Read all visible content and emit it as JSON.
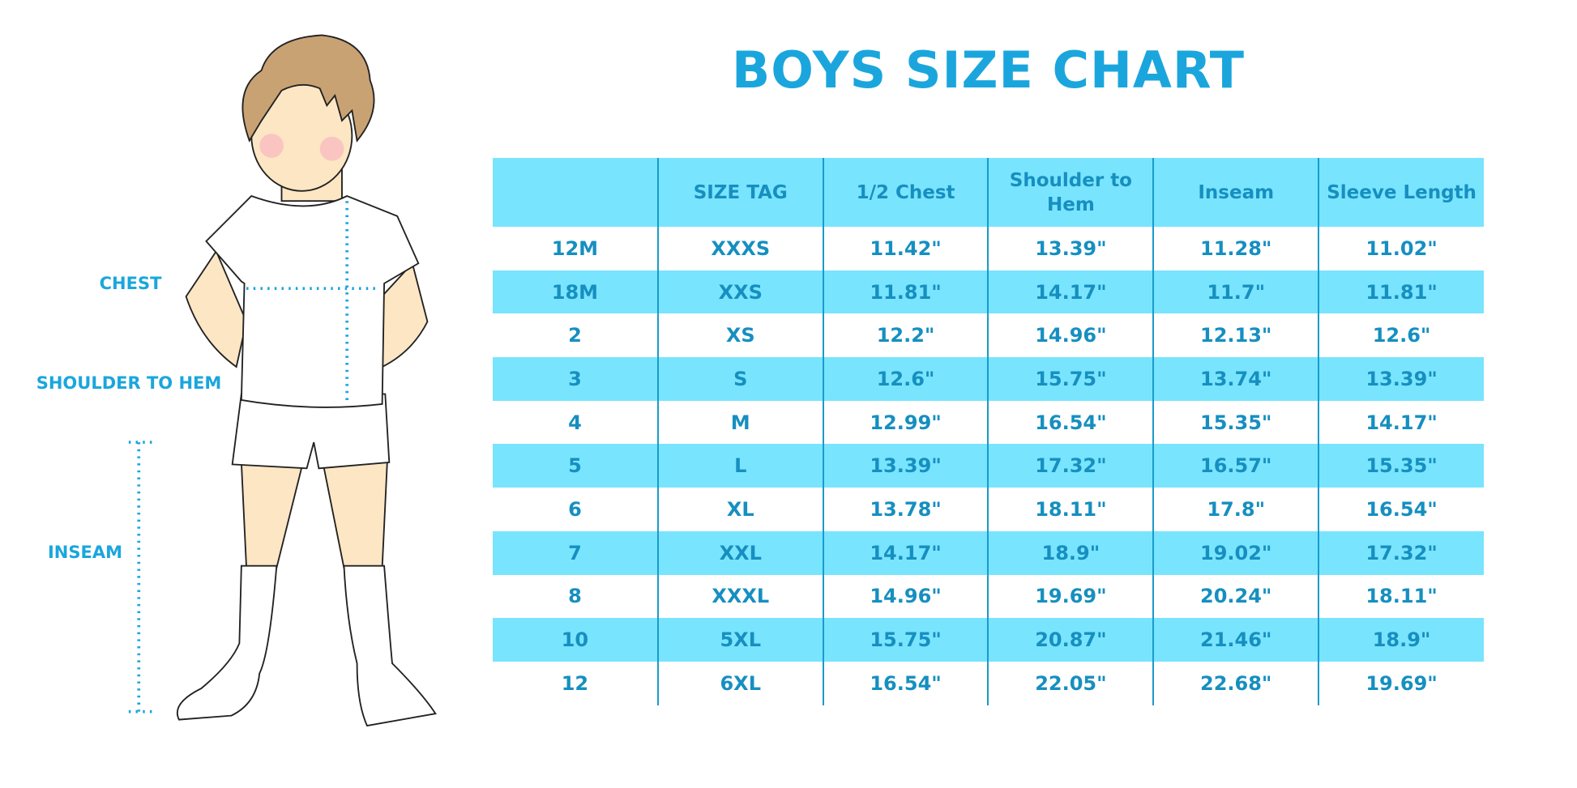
{
  "title": "BOYS SIZE CHART",
  "figure_labels": {
    "chest": "CHEST",
    "shoulder_to_hem": "SHOULDER TO HEM",
    "inseam": "INSEAM"
  },
  "colors": {
    "accent": "#1AA6DD",
    "row_highlight": "#79E4FD",
    "text": "#168FC0"
  },
  "table": {
    "headers": [
      "",
      "SIZE TAG",
      "1/2 Chest",
      "Shoulder to Hem",
      "Inseam",
      "Sleeve Length"
    ],
    "rows": [
      [
        "12M",
        "XXXS",
        "11.42\"",
        "13.39\"",
        "11.28\"",
        "11.02\""
      ],
      [
        "18M",
        "XXS",
        "11.81\"",
        "14.17\"",
        "11.7\"",
        "11.81\""
      ],
      [
        "2",
        "XS",
        "12.2\"",
        "14.96\"",
        "12.13\"",
        "12.6\""
      ],
      [
        "3",
        "S",
        "12.6\"",
        "15.75\"",
        "13.74\"",
        "13.39\""
      ],
      [
        "4",
        "M",
        "12.99\"",
        "16.54\"",
        "15.35\"",
        "14.17\""
      ],
      [
        "5",
        "L",
        "13.39\"",
        "17.32\"",
        "16.57\"",
        "15.35\""
      ],
      [
        "6",
        "XL",
        "13.78\"",
        "18.11\"",
        "17.8\"",
        "16.54\""
      ],
      [
        "7",
        "XXL",
        "14.17\"",
        "18.9\"",
        "19.02\"",
        "17.32\""
      ],
      [
        "8",
        "XXXL",
        "14.96\"",
        "19.69\"",
        "20.24\"",
        "18.11\""
      ],
      [
        "10",
        "5XL",
        "15.75\"",
        "20.87\"",
        "21.46\"",
        "18.9\""
      ],
      [
        "12",
        "6XL",
        "16.54\"",
        "22.05\"",
        "22.68\"",
        "19.69\""
      ]
    ]
  }
}
